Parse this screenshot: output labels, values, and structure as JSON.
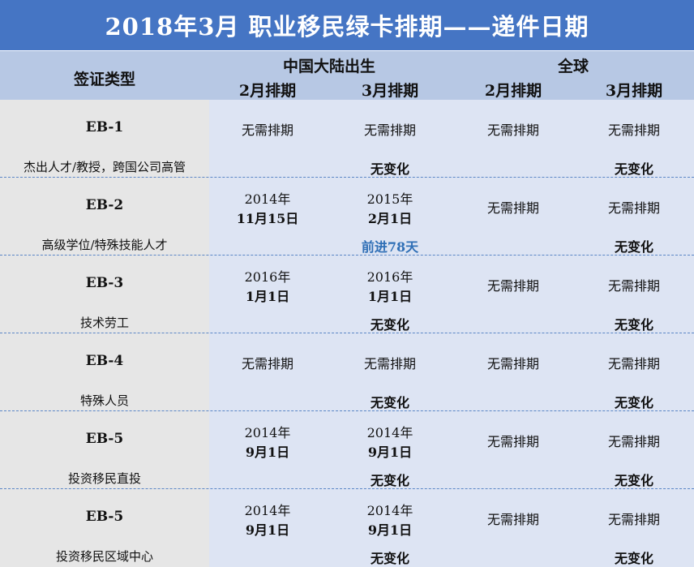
{
  "title": "2018年3月  职业移民绿卡排期——递件日期",
  "header": {
    "type_label": "签证类型",
    "china_label": "中国大陆出生",
    "global_label": "全球",
    "china_feb": "2月排期",
    "china_mar": "3月排期",
    "global_feb": "2月排期",
    "global_mar": "3月排期"
  },
  "rows": [
    {
      "code": "EB-1",
      "desc": "杰出人才/教授，跨国公司高管",
      "china_feb": "无需排期",
      "china_mar": "无需排期",
      "global_feb": "无需排期",
      "global_mar": "无需排期",
      "china_change": "无变化",
      "global_change": "无变化"
    },
    {
      "code": "EB-2",
      "desc": "高级学位/特殊技能人才",
      "china_feb_year": "2014年",
      "china_feb_date": "11月15日",
      "china_mar_year": "2015年",
      "china_mar_date": "2月1日",
      "global_feb": "无需排期",
      "global_mar": "无需排期",
      "china_change": "前进78天",
      "global_change": "无变化"
    },
    {
      "code": "EB-3",
      "desc": "技术劳工",
      "china_feb_year": "2016年",
      "china_feb_date": "1月1日",
      "china_mar_year": "2016年",
      "china_mar_date": "1月1日",
      "global_feb": "无需排期",
      "global_mar": "无需排期",
      "china_change": "无变化",
      "global_change": "无变化"
    },
    {
      "code": "EB-4",
      "desc": "特殊人员",
      "china_feb": "无需排期",
      "china_mar": "无需排期",
      "global_feb": "无需排期",
      "global_mar": "无需排期",
      "china_change": "无变化",
      "global_change": "无变化"
    },
    {
      "code": "EB-5",
      "desc": "投资移民直投",
      "china_feb_year": "2014年",
      "china_feb_date": "9月1日",
      "china_mar_year": "2014年",
      "china_mar_date": "9月1日",
      "global_feb": "无需排期",
      "global_mar": "无需排期",
      "china_change": "无变化",
      "global_change": "无变化"
    },
    {
      "code": "EB-5",
      "desc": "投资移民区域中心",
      "china_feb_year": "2014年",
      "china_feb_date": "9月1日",
      "china_mar_year": "2014年",
      "china_mar_date": "9月1日",
      "global_feb": "无需排期",
      "global_mar": "无需排期",
      "china_change": "无变化",
      "global_change": "无变化"
    }
  ]
}
